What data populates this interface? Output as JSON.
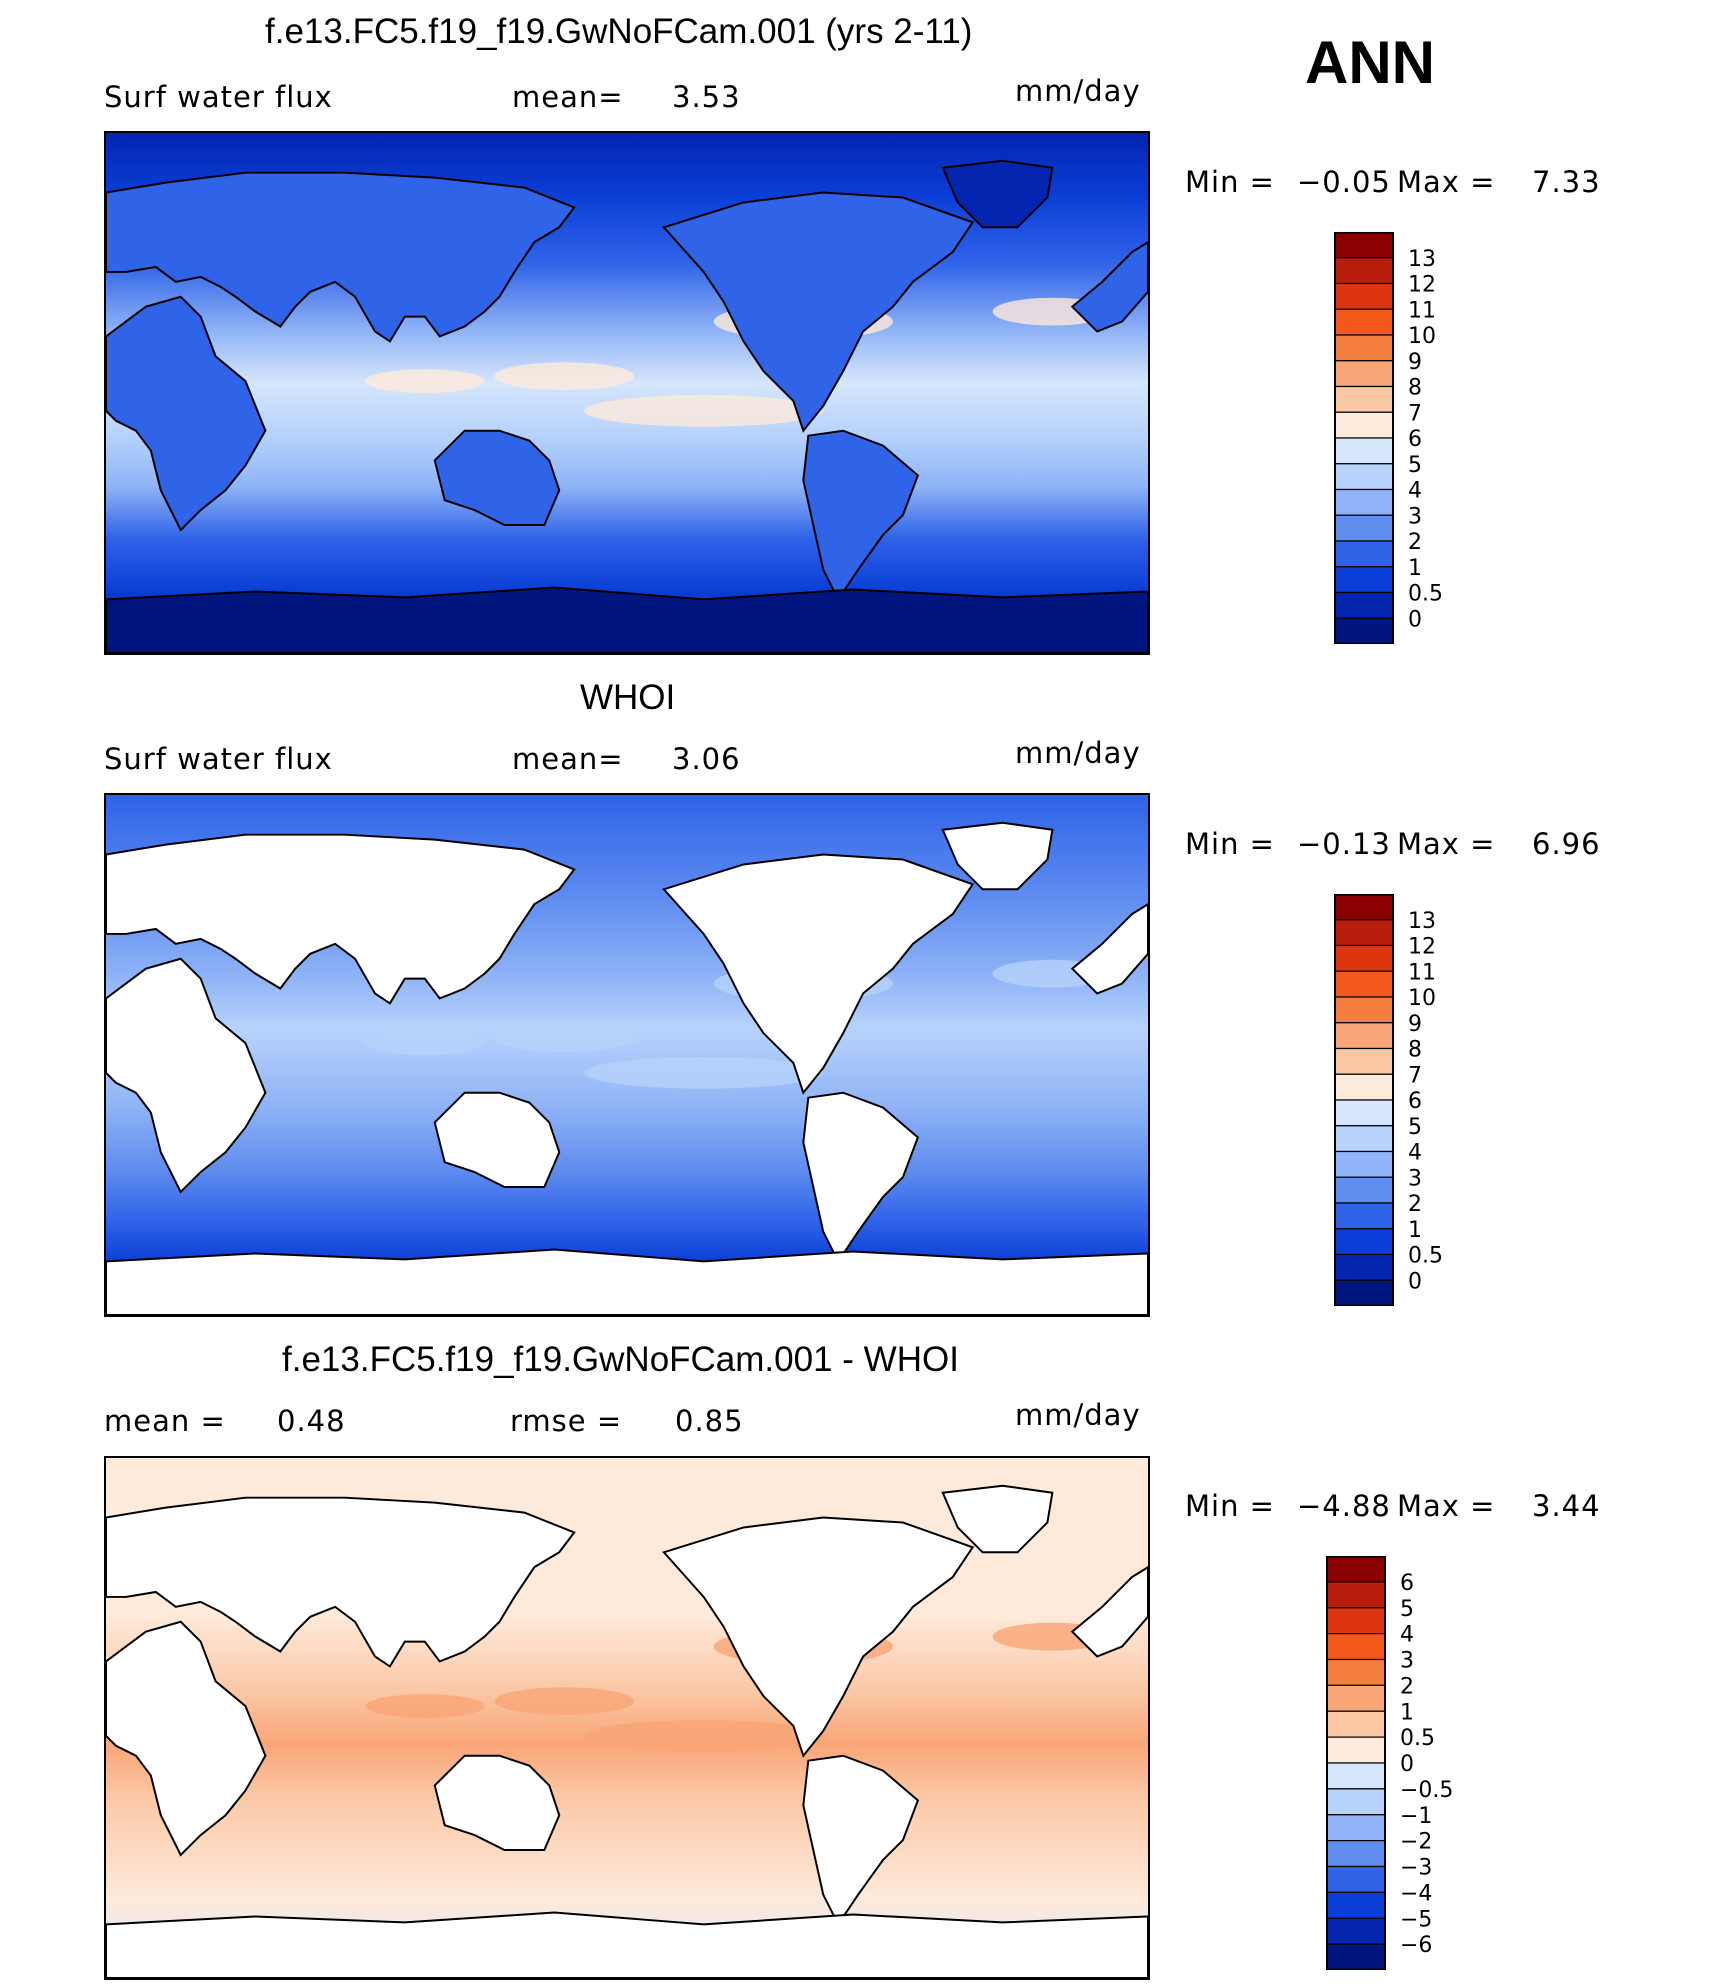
{
  "season": "ANN",
  "panels": [
    {
      "id": "model",
      "title": "f.e13.FC5.f19_f19.GwNoFCam.001 (yrs 2-11)",
      "left_label": "Surf  water  flux",
      "stat1_label": "mean=",
      "stat1_value": "3.53",
      "units": "mm/day",
      "min_label": "Min  =",
      "min_value": "−0.05",
      "max_label": "Max  =",
      "max_value": "7.33",
      "ocean_style": "full",
      "colorbar_labels": [
        "13",
        "12",
        "11",
        "10",
        "9",
        "8",
        "7",
        "6",
        "5",
        "4",
        "3",
        "2",
        "1",
        "0.5",
        "0"
      ]
    },
    {
      "id": "obs",
      "title": "WHOI",
      "left_label": "Surf  water  flux",
      "stat1_label": "mean=",
      "stat1_value": "3.06",
      "units": "mm/day",
      "min_label": "Min  =",
      "min_value": "−0.13",
      "max_label": "Max  =",
      "max_value": "6.96",
      "ocean_style": "ocean-only",
      "colorbar_labels": [
        "13",
        "12",
        "11",
        "10",
        "9",
        "8",
        "7",
        "6",
        "5",
        "4",
        "3",
        "2",
        "1",
        "0.5",
        "0"
      ]
    },
    {
      "id": "diff",
      "title": "f.e13.FC5.f19_f19.GwNoFCam.001 - WHOI",
      "left_label": "mean  =",
      "left_value": "0.48",
      "stat1_label": "rmse  =",
      "stat1_value": "0.85",
      "units": "mm/day",
      "min_label": "Min  =",
      "min_value": "−4.88",
      "max_label": "Max  =",
      "max_value": "3.44",
      "ocean_style": "diff",
      "colorbar_labels": [
        "6",
        "5",
        "4",
        "3",
        "2",
        "1",
        "0.5",
        "0",
        "−0.5",
        "−1",
        "−2",
        "−3",
        "−4",
        "−5",
        "−6"
      ]
    }
  ],
  "colors": {
    "abs_scale": [
      "#8b0000",
      "#b71c0c",
      "#dd3510",
      "#f4571a",
      "#f57d3e",
      "#f9a577",
      "#fbc7a5",
      "#feeadb",
      "#d5e6fb",
      "#b7d2fb",
      "#8fb3f6",
      "#5f8df0",
      "#2f63e8",
      "#0b3ed6",
      "#0425b0",
      "#01157e"
    ],
    "diff_scale": [
      "#8b0000",
      "#b71c0c",
      "#dd3510",
      "#f4571a",
      "#f57d3e",
      "#f9a577",
      "#fbc7a5",
      "#feeadb",
      "#d5e6fb",
      "#b7d2fb",
      "#8fb3f6",
      "#5f8df0",
      "#2f63e8",
      "#0b3ed6",
      "#0425b0",
      "#01157e"
    ]
  }
}
